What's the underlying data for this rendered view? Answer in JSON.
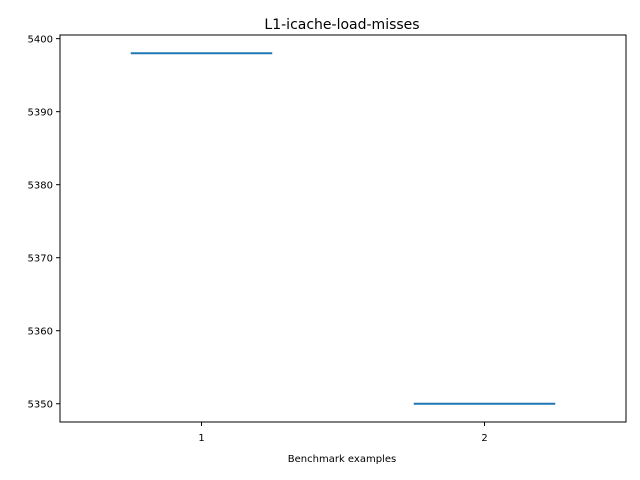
{
  "chart_data": {
    "type": "box",
    "title": "L1-icache-load-misses",
    "xlabel": "Benchmark examples",
    "ylabel": "",
    "categories": [
      "1",
      "2"
    ],
    "values": [
      5398,
      5350
    ],
    "ylim": [
      5347.5,
      5400.5
    ],
    "xlim": [
      0.5,
      2.5
    ],
    "yticks": [
      5350,
      5360,
      5370,
      5380,
      5390,
      5400
    ],
    "grid": false,
    "series_color": "#1f77b4"
  }
}
